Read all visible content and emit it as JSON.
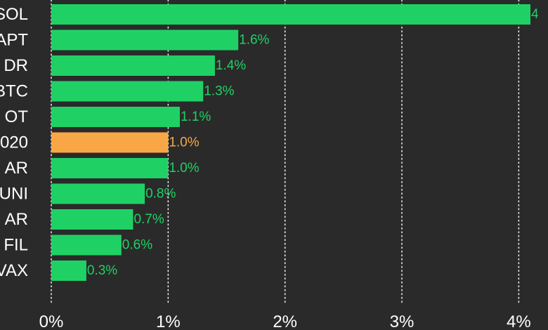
{
  "chart_data": {
    "type": "bar",
    "orientation": "horizontal",
    "categories": [
      "SOL",
      "APT",
      "DR",
      "BTC",
      "OT",
      "020",
      "AR",
      "UNI",
      "AR",
      "FIL",
      "VAX"
    ],
    "values": [
      4.1,
      1.6,
      1.4,
      1.3,
      1.1,
      1.0,
      1.0,
      0.8,
      0.7,
      0.6,
      0.3
    ],
    "value_labels": [
      "4",
      "1.6%",
      "1.4%",
      "1.3%",
      "1.1%",
      "1.0%",
      "1.0%",
      "0.8%",
      "0.7%",
      "0.6%",
      "0.3%"
    ],
    "highlight_index": 5,
    "xlim": [
      0,
      4.1
    ],
    "x_ticks": [
      0,
      1,
      2,
      3,
      4
    ],
    "x_tick_labels": [
      "0%",
      "1%",
      "2%",
      "3%",
      "4%"
    ],
    "grid": true,
    "colors": {
      "background": "#2a2a2a",
      "bar": "#1fd165",
      "highlight": "#f9a746",
      "label": "#ffffff",
      "value_label": "#1fd165",
      "highlight_value_label": "#f9a746",
      "grid": "#ffffff"
    }
  }
}
